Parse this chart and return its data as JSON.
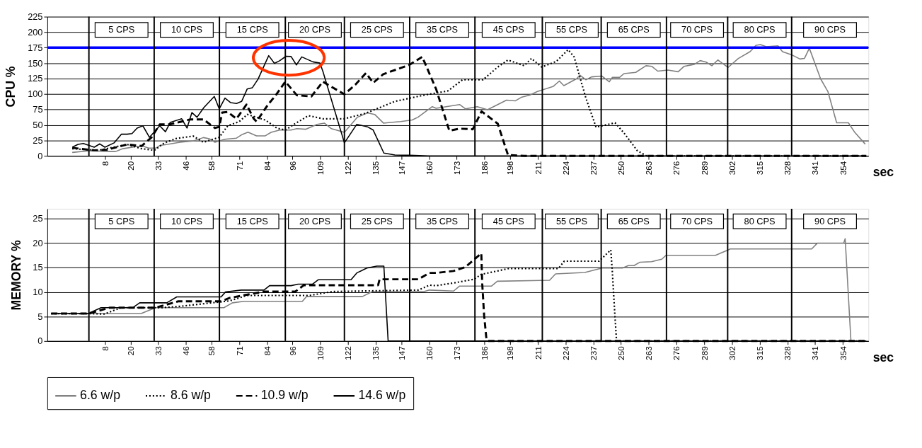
{
  "chart_data": [
    {
      "type": "line",
      "ylabel": "CPU %",
      "xlabel": "sec",
      "xlim": [
        -19,
        366
      ],
      "ylim": [
        0,
        225
      ],
      "yticks": [
        0,
        25,
        50,
        75,
        100,
        125,
        150,
        175,
        200,
        225
      ],
      "xticks": [
        8,
        20,
        33,
        46,
        58,
        71,
        84,
        96,
        109,
        122,
        135,
        147,
        160,
        173,
        186,
        198,
        211,
        224,
        237,
        250,
        263,
        276,
        289,
        302,
        315,
        328,
        341,
        354
      ],
      "grid": "y",
      "legend": "bottom",
      "marker": "none",
      "series": [
        {
          "name": "6.6 w/p",
          "color": "#808080",
          "line_style": "solid",
          "x": [
            -7.3,
            0.8,
            10.3,
            13,
            16.4,
            22.4,
            25.8,
            28.5,
            31.9,
            33.9,
            37.3,
            42.7,
            49.4,
            54.2,
            56.9,
            59.6,
            64.3,
            69.7,
            72.4,
            75.1,
            79.1,
            83.2,
            85.9,
            89.9,
            95.3,
            98,
            102.1,
            107.5,
            110.9,
            114.2,
            120.3,
            126.4,
            131.1,
            134.5,
            138.6,
            141.9,
            146.7,
            152.1,
            154.8,
            161.5,
            163.3,
            174.3,
            177.1,
            182.6,
            187.4,
            192.2,
            196.3,
            200.5,
            203.2,
            207.3,
            210.8,
            218.3,
            221.1,
            223.2,
            229.3,
            230.7,
            233.5,
            236.2,
            241,
            244.5,
            245.9,
            249.3,
            251.4,
            256.9,
            261.7,
            264.4,
            267.2,
            272,
            276.8,
            279.6,
            284.4,
            287.1,
            289.9,
            292.6,
            295.4,
            300.2,
            305,
            310.5,
            313.3,
            315.4,
            318.1,
            323.6,
            325.7,
            329.8,
            333.9,
            336,
            338.3,
            343.6,
            347,
            351.1,
            356.6,
            359.4,
            364.5
          ],
          "values": [
            5.6,
            8.3,
            7,
            7,
            11.6,
            14.8,
            15.7,
            12.5,
            12.5,
            17,
            18.5,
            21.8,
            24,
            29.6,
            27.8,
            22,
            26.8,
            28.7,
            34.7,
            38.4,
            32.4,
            32.4,
            38,
            41.7,
            41.7,
            44,
            43,
            51,
            53,
            44,
            38,
            62.5,
            69.4,
            67,
            53,
            54,
            55.5,
            58,
            62.5,
            79.6,
            77,
            83,
            76,
            79.5,
            74.7,
            83,
            90,
            89,
            94.6,
            98.4,
            104,
            112.5,
            121,
            113.6,
            125,
            130.6,
            123,
            127.7,
            129,
            119.7,
            126.8,
            126.8,
            133,
            135,
            145.7,
            144.8,
            137,
            138.6,
            136,
            144.8,
            148,
            154,
            151.6,
            145.7,
            155,
            143,
            157.5,
            168.4,
            178.8,
            179.8,
            176.4,
            177.8,
            168.4,
            163.7,
            156.6,
            157.5,
            174,
            124.4,
            104,
            53.5,
            53.5,
            39,
            19
          ]
        },
        {
          "name": "8.6 w/p",
          "color": "#000000",
          "line_style": "dotted",
          "x": [
            -7.3,
            5,
            18.4,
            25.2,
            31.2,
            35.9,
            41.3,
            49.4,
            54.2,
            61.6,
            65.6,
            71,
            74.8,
            81.2,
            83.2,
            88.6,
            92.6,
            96.7,
            103.4,
            110.2,
            120.3,
            130.4,
            143.9,
            157.4,
            168.8,
            175.7,
            185.3,
            192.2,
            197,
            204.6,
            208,
            212.8,
            219.7,
            225.2,
            228,
            233.5,
            238.3,
            247.2,
            251.4,
            257.6,
            262,
            365
          ],
          "values": [
            11.6,
            9,
            18.5,
            11.6,
            9,
            21,
            28,
            32,
            22,
            30,
            48.6,
            55.5,
            67,
            60,
            58,
            45,
            41.7,
            51,
            65,
            60,
            60,
            69,
            88,
            98,
            105,
            123,
            123,
            143.6,
            155,
            145.7,
            157.5,
            143.6,
            152.8,
            171.7,
            160,
            93.7,
            46.4,
            53.5,
            37,
            8.5,
            0,
            0
          ]
        },
        {
          "name": "10.9 w/p",
          "color": "#000000",
          "line_style": "dashed",
          "x": [
            -7.3,
            3,
            9,
            18.4,
            25.2,
            29.9,
            33.7,
            38.6,
            48.1,
            54.2,
            59.6,
            61.6,
            63,
            65.6,
            69.7,
            74.4,
            77.8,
            79.1,
            84.5,
            87.9,
            92.6,
            98,
            104.8,
            110.2,
            113.6,
            120.3,
            125.7,
            130.4,
            133.8,
            138.5,
            150.7,
            156.8,
            163.3,
            169.5,
            174.3,
            180.5,
            184.6,
            192.2,
            197,
            204.6,
            365
          ],
          "values": [
            13,
            9,
            10,
            18.5,
            16,
            30,
            51,
            51,
            59,
            59,
            45,
            47,
            70,
            71,
            60,
            83,
            60,
            55.5,
            83,
            97,
            120,
            98,
            96,
            120,
            113,
            99.5,
            116,
            134,
            118,
            132,
            147,
            160,
            108,
            40.7,
            44,
            43,
            72,
            52,
            1.4,
            0,
            0
          ]
        },
        {
          "name": "14.6 w/p",
          "color": "#000000",
          "line_style": "solid",
          "x": [
            -7.3,
            -4.6,
            -2.1,
            3,
            5.6,
            8,
            12.3,
            15.7,
            18.4,
            20.7,
            23.1,
            25.8,
            28.9,
            31.2,
            33.7,
            36.4,
            38.6,
            44,
            46.5,
            48.8,
            51.2,
            54.4,
            59.3,
            61.6,
            64.3,
            67,
            69.7,
            72.1,
            74.7,
            77.1,
            79.8,
            84.8,
            87.5,
            89.9,
            92.9,
            95.3,
            97.8,
            100.3,
            105.5,
            108.8,
            110.2,
            120.3,
            126.1,
            131.1,
            133.8,
            138.8,
            144,
            150.7,
            160,
            250,
            365
          ],
          "values": [
            14,
            18.5,
            20,
            14,
            19.4,
            14,
            21,
            35,
            35,
            36,
            45,
            48.6,
            30,
            39,
            48.6,
            39,
            54,
            60,
            45,
            70,
            62.5,
            78,
            96,
            76,
            93.5,
            86,
            84.7,
            88,
            108,
            110,
            124,
            162,
            149.5,
            153.7,
            161,
            160.6,
            147,
            160,
            152,
            150,
            136.6,
            21,
            51,
            47,
            41.7,
            4.6,
            1.4,
            1,
            0,
            0,
            0
          ]
        }
      ],
      "ref_lines": [
        {
          "axis": "y",
          "value": 175,
          "color": "#0000ff"
        },
        {
          "axis": "x",
          "value": 0.5
        },
        {
          "axis": "x",
          "value": 31.1
        },
        {
          "axis": "x",
          "value": 61.7
        },
        {
          "axis": "x",
          "value": 92.6
        },
        {
          "axis": "x",
          "value": 120.3
        },
        {
          "axis": "x",
          "value": 150.9
        },
        {
          "axis": "x",
          "value": 181.5
        },
        {
          "axis": "x",
          "value": 213.1
        },
        {
          "axis": "x",
          "value": 240.7
        },
        {
          "axis": "x",
          "value": 271.3
        },
        {
          "axis": "x",
          "value": 300
        },
        {
          "axis": "x",
          "value": 330
        }
      ],
      "annotations": [
        "5 CPS",
        "10 CPS",
        "15 CPS",
        "20 CPS",
        "25 CPS",
        "35 CPS",
        "45 CPS",
        "55 CPS",
        "65 CPS",
        "70 CPS",
        "80 CPS",
        "90 CPS"
      ]
    },
    {
      "type": "line",
      "ylabel": "MEMORY %",
      "xlabel": "sec",
      "xlim": [
        -19,
        366
      ],
      "ylim": [
        0,
        27
      ],
      "yticks": [
        0,
        5,
        10,
        15,
        20,
        25
      ],
      "xticks": [
        8,
        20,
        33,
        46,
        58,
        71,
        84,
        96,
        109,
        122,
        135,
        147,
        160,
        173,
        186,
        198,
        211,
        224,
        237,
        250,
        263,
        276,
        289,
        302,
        315,
        328,
        341,
        354
      ],
      "grid": "y",
      "legend": "bottom",
      "marker": "none",
      "series": [
        {
          "name": "6.6 w/p",
          "color": "#808080",
          "line_style": "solid",
          "x": [
            -17.2,
            0.9,
            25,
            31.7,
            63.8,
            67.8,
            73.2,
            100.6,
            102.6,
            128.8,
            133.4,
            157.5,
            160.2,
            171.5,
            174.2,
            189.2,
            192,
            216.5,
            219.3,
            233,
            241.1,
            250.7,
            253.4,
            256.1,
            258.9,
            264.3,
            269.1,
            271.1,
            294.3,
            299.8,
            301.2,
            339.4,
            342.1,
            354.4,
            355.1,
            357.8
          ],
          "values": [
            5.6,
            5.6,
            5.6,
            6.8,
            6.8,
            7.8,
            8.1,
            8.1,
            9.1,
            9.1,
            10.1,
            10.1,
            10.4,
            10.2,
            11.2,
            11.2,
            12.2,
            12.4,
            13.7,
            14,
            14.9,
            14.9,
            15.4,
            15.4,
            16.1,
            16.2,
            16.7,
            17.5,
            17.5,
            18.5,
            18.8,
            18.8,
            20,
            20,
            20.9,
            0
          ]
        },
        {
          "name": "8.6 w/p",
          "color": "#000000",
          "line_style": "dotted",
          "x": [
            -17.2,
            0.2,
            7.6,
            15.6,
            27.7,
            34.4,
            43.7,
            66.5,
            74.5,
            104,
            114.7,
            154.9,
            160.2,
            163.3,
            172.2,
            181,
            184.5,
            197.4,
            220.6,
            223.4,
            239.7,
            245.2,
            245.9,
            247.2,
            247.9,
            365
          ],
          "values": [
            5.6,
            5.6,
            5.5,
            6.8,
            6.8,
            6.8,
            7.1,
            8.2,
            9.3,
            9.3,
            10.1,
            10.4,
            11.4,
            11.3,
            11.9,
            12.6,
            13.6,
            14.8,
            14.8,
            16.3,
            16.3,
            18.6,
            14.3,
            4.7,
            0,
            0
          ]
        },
        {
          "name": "10.9 w/p",
          "color": "#000000",
          "line_style": "dashed",
          "x": [
            -17.2,
            0.2,
            10.3,
            31.7,
            42.4,
            62.5,
            66.5,
            82.6,
            97.3,
            101.3,
            136.1,
            136.8,
            154.9,
            160.2,
            163.3,
            171.5,
            177,
            184.5,
            184.9,
            185.8,
            186.8,
            187.5,
            365
          ],
          "values": [
            5.6,
            5.6,
            6.8,
            6.8,
            8.1,
            8.1,
            8.8,
            10.1,
            10.1,
            11.4,
            11.4,
            12.6,
            12.6,
            13.9,
            13.9,
            14.3,
            15.1,
            17.9,
            11.9,
            5.3,
            0.8,
            0,
            0
          ]
        },
        {
          "name": "14.6 w/p",
          "color": "#000000",
          "line_style": "solid",
          "x": [
            -17.2,
            0.2,
            6.2,
            21,
            24.3,
            37,
            41.7,
            62.5,
            64.5,
            71.9,
            82.6,
            85.2,
            95.3,
            98.6,
            105.3,
            108,
            123.4,
            126.1,
            130.8,
            135.5,
            138.8,
            140.8,
            365
          ],
          "values": [
            5.6,
            5.6,
            6.8,
            6.8,
            7.8,
            7.8,
            9,
            9,
            10,
            10.4,
            10.4,
            11.3,
            11.3,
            11.6,
            11.6,
            12.5,
            12.5,
            13.9,
            14.9,
            15.3,
            15.3,
            0,
            0
          ]
        }
      ],
      "ref_lines": [
        {
          "axis": "x",
          "value": 0.5
        },
        {
          "axis": "x",
          "value": 31.1
        },
        {
          "axis": "x",
          "value": 61.7
        },
        {
          "axis": "x",
          "value": 92.6
        },
        {
          "axis": "x",
          "value": 120.3
        },
        {
          "axis": "x",
          "value": 150.9
        },
        {
          "axis": "x",
          "value": 181.5
        },
        {
          "axis": "x",
          "value": 213.1
        },
        {
          "axis": "x",
          "value": 240.7
        },
        {
          "axis": "x",
          "value": 271.3
        },
        {
          "axis": "x",
          "value": 300
        },
        {
          "axis": "x",
          "value": 330
        }
      ],
      "annotations": [
        "5 CPS",
        "10 CPS",
        "15 CPS",
        "20 CPS",
        "25 CPS",
        "35 CPS",
        "45 CPS",
        "55 CPS",
        "65 CPS",
        "70 CPS",
        "80 CPS",
        "90 CPS"
      ]
    }
  ]
}
